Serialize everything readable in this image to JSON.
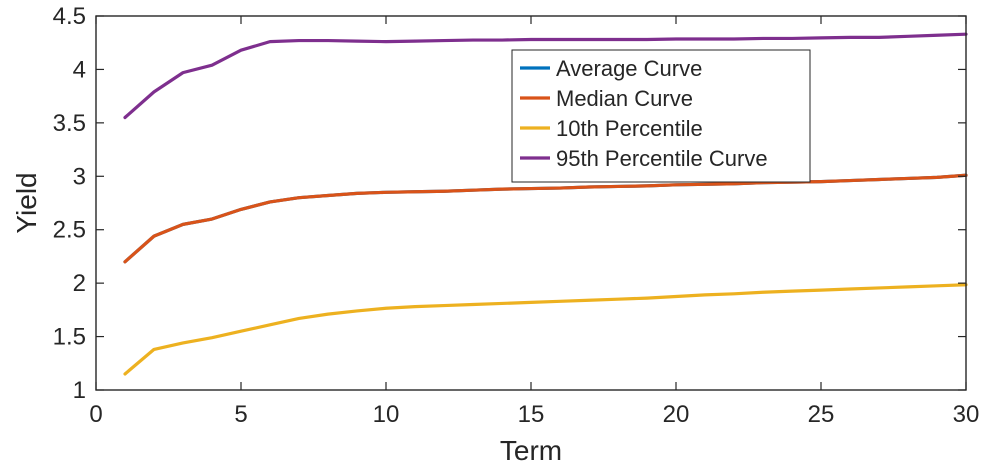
{
  "chart_data": {
    "type": "line",
    "title": "",
    "xlabel": "Term",
    "ylabel": "Yield",
    "xlim": [
      0,
      30
    ],
    "ylim": [
      1,
      4.5
    ],
    "xticks": [
      0,
      5,
      10,
      15,
      20,
      25,
      30
    ],
    "xtick_labels": [
      "0",
      "5",
      "10",
      "15",
      "20",
      "25",
      "30"
    ],
    "yticks": [
      1,
      1.5,
      2,
      2.5,
      3,
      3.5,
      4,
      4.5
    ],
    "ytick_labels": [
      "1",
      "1.5",
      "2",
      "2.5",
      "3",
      "3.5",
      "4",
      "4.5"
    ],
    "grid": false,
    "legend_position": "top-right",
    "x": [
      1,
      2,
      3,
      4,
      5,
      6,
      7,
      8,
      9,
      10,
      11,
      12,
      13,
      14,
      15,
      16,
      17,
      18,
      19,
      20,
      21,
      22,
      23,
      24,
      25,
      26,
      27,
      28,
      29,
      30
    ],
    "series": [
      {
        "name": "Average Curve",
        "color": "#0072BD",
        "values": [
          2.2,
          2.44,
          2.55,
          2.6,
          2.69,
          2.76,
          2.8,
          2.82,
          2.84,
          2.85,
          2.855,
          2.86,
          2.87,
          2.88,
          2.885,
          2.89,
          2.9,
          2.905,
          2.91,
          2.92,
          2.925,
          2.93,
          2.94,
          2.945,
          2.95,
          2.96,
          2.97,
          2.98,
          2.99,
          3.01
        ]
      },
      {
        "name": "Median Curve",
        "color": "#D95319",
        "values": [
          2.2,
          2.44,
          2.55,
          2.6,
          2.69,
          2.76,
          2.8,
          2.82,
          2.84,
          2.85,
          2.855,
          2.86,
          2.87,
          2.88,
          2.885,
          2.89,
          2.9,
          2.905,
          2.91,
          2.92,
          2.925,
          2.93,
          2.94,
          2.945,
          2.95,
          2.96,
          2.97,
          2.98,
          2.99,
          3.01
        ]
      },
      {
        "name": "10th Percentile",
        "color": "#EDB120",
        "values": [
          1.15,
          1.38,
          1.44,
          1.49,
          1.55,
          1.61,
          1.67,
          1.71,
          1.74,
          1.765,
          1.78,
          1.79,
          1.8,
          1.81,
          1.82,
          1.83,
          1.84,
          1.85,
          1.86,
          1.875,
          1.89,
          1.9,
          1.915,
          1.925,
          1.935,
          1.945,
          1.955,
          1.965,
          1.975,
          1.985
        ]
      },
      {
        "name": "95th Percentile Curve",
        "color": "#7E2F8E",
        "values": [
          3.55,
          3.79,
          3.97,
          4.04,
          4.18,
          4.26,
          4.27,
          4.27,
          4.265,
          4.26,
          4.265,
          4.27,
          4.275,
          4.275,
          4.28,
          4.28,
          4.28,
          4.28,
          4.28,
          4.285,
          4.285,
          4.285,
          4.29,
          4.29,
          4.295,
          4.3,
          4.3,
          4.31,
          4.32,
          4.33
        ]
      }
    ]
  }
}
